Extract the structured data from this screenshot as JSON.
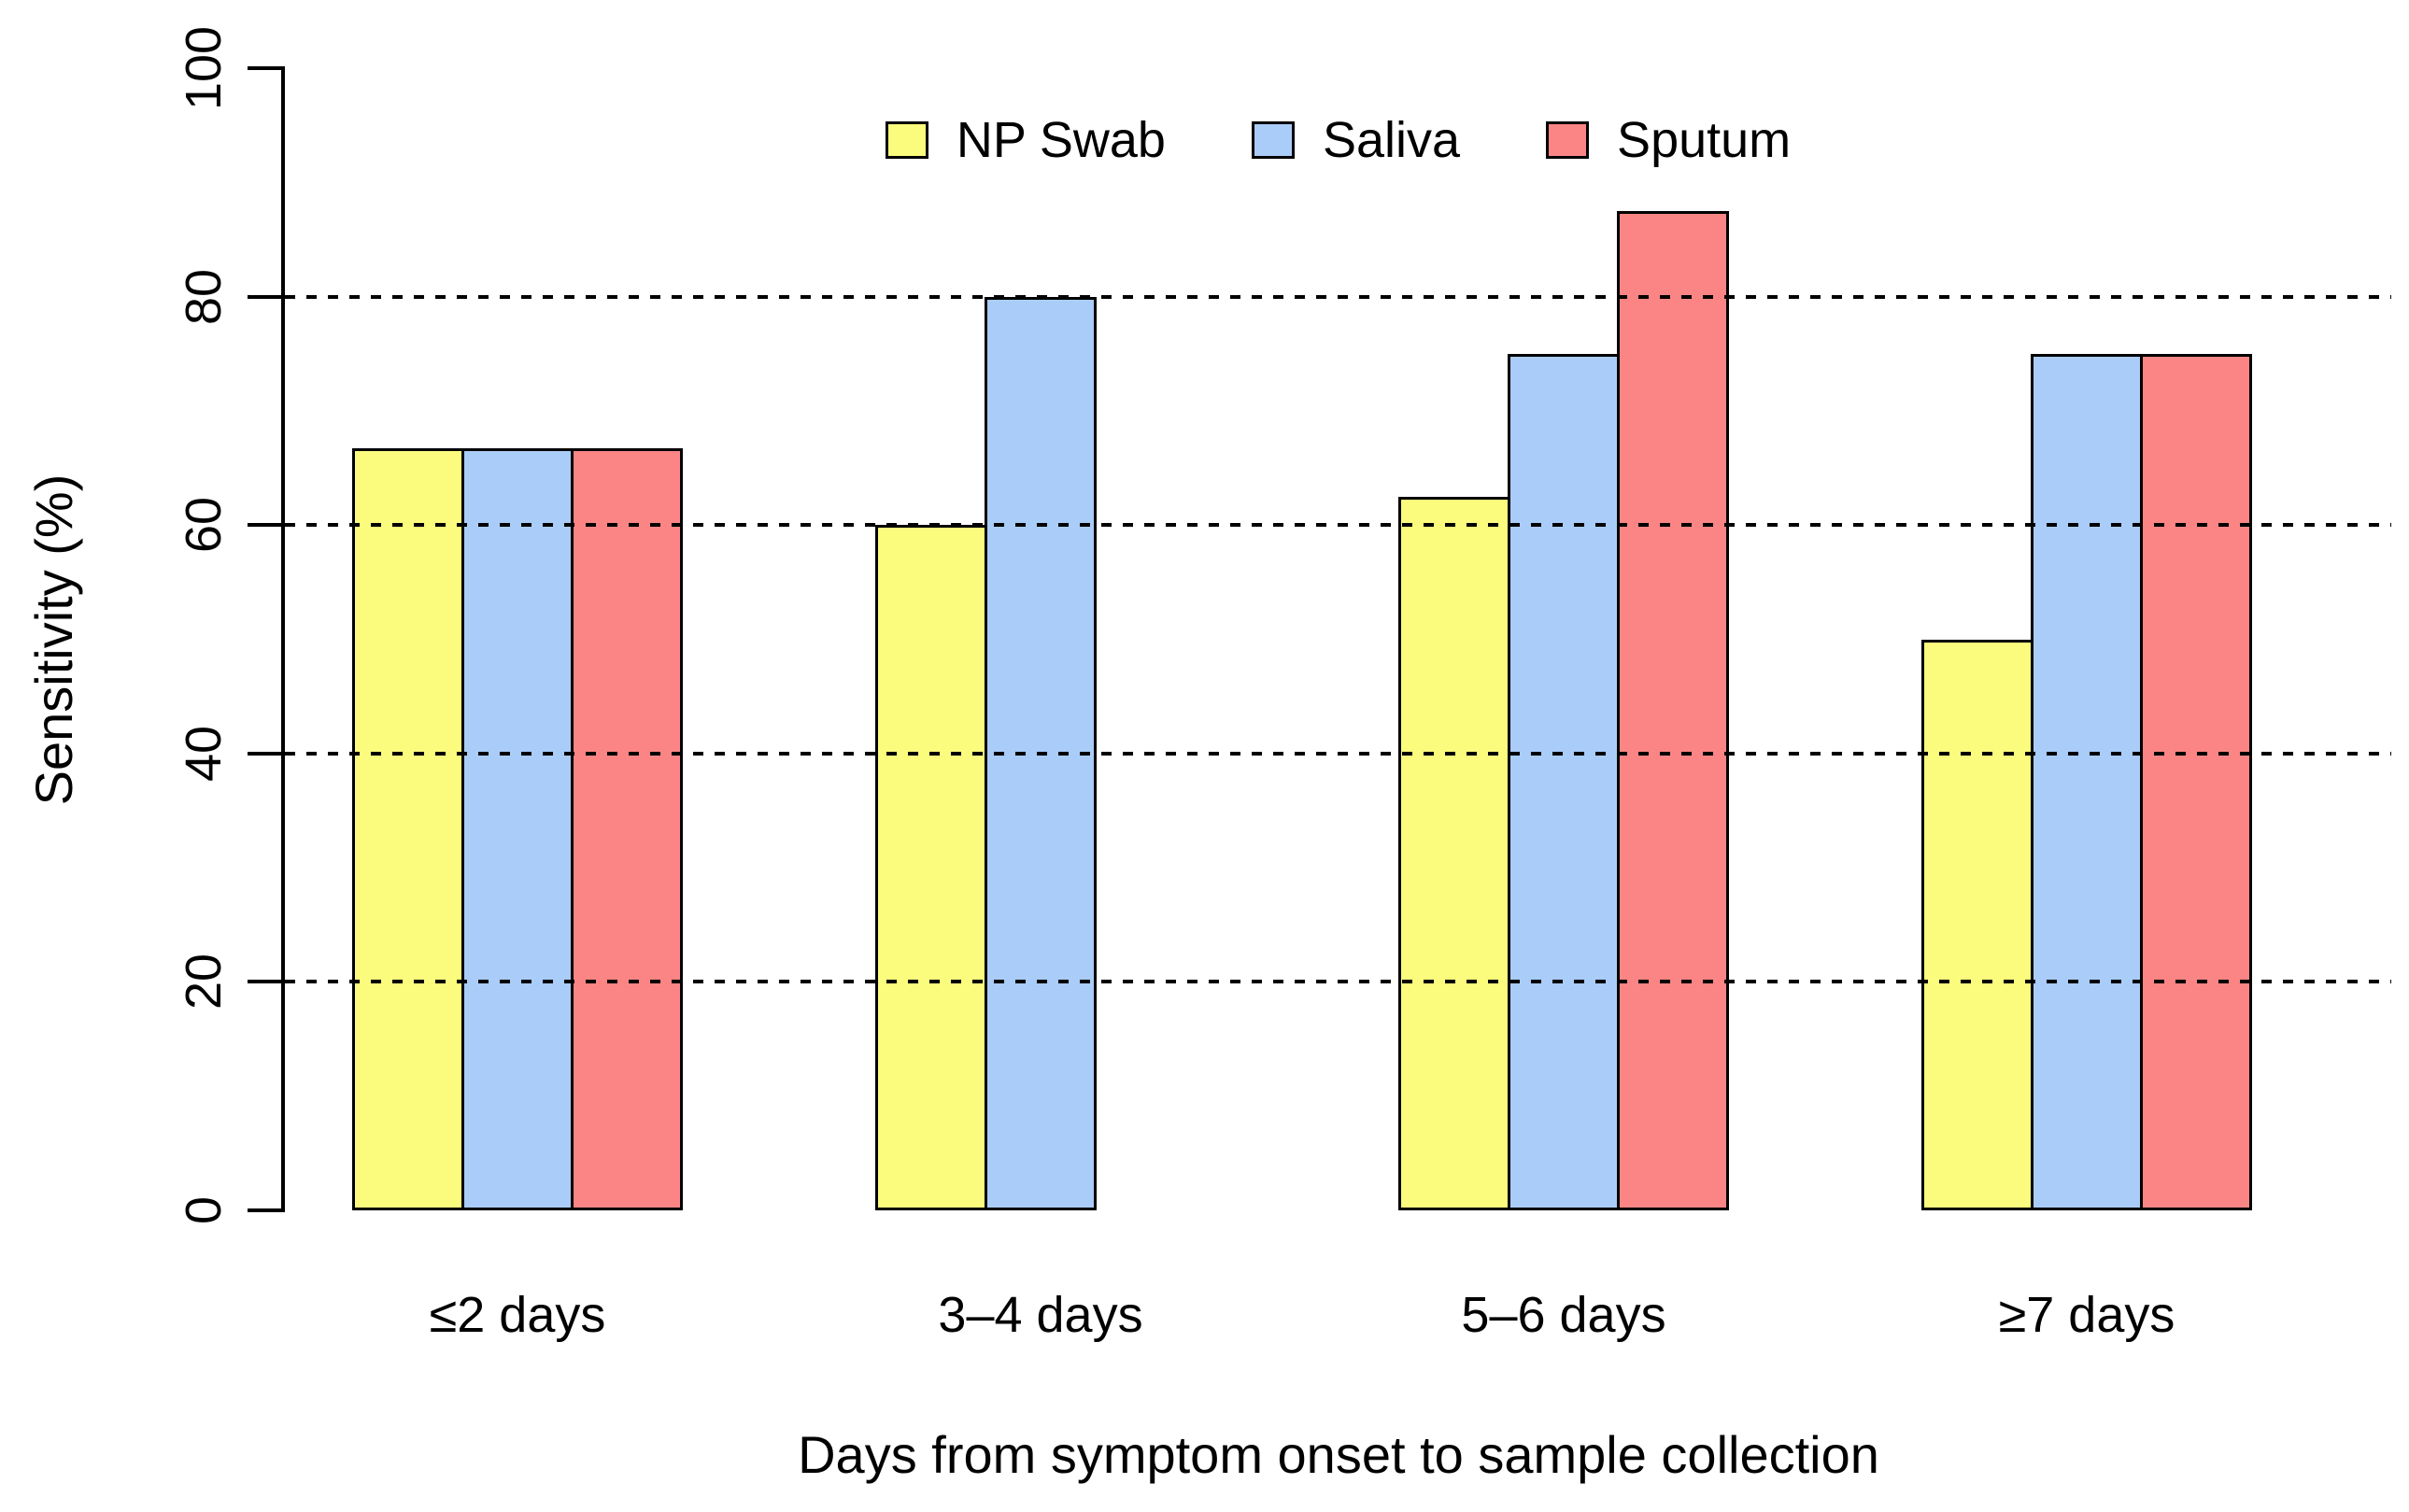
{
  "chart_data": {
    "type": "bar",
    "title": "",
    "categories": [
      "≤2 days",
      "3–4 days",
      "5–6 days",
      "≥7 days"
    ],
    "series": [
      {
        "name": "NP Swab",
        "color": "#FBFB7E",
        "values": [
          66.7,
          60,
          62.5,
          50
        ]
      },
      {
        "name": "Saliva",
        "color": "#AACCF8",
        "values": [
          66.7,
          80,
          75,
          75
        ]
      },
      {
        "name": "Sputum",
        "color": "#FB8585",
        "values": [
          66.7,
          null,
          87.5,
          75
        ]
      }
    ],
    "xlabel": "Days from symptom onset to sample collection",
    "ylabel": "Sensitivity (%)",
    "ylim": [
      0,
      100
    ],
    "yticks": [
      0,
      20,
      40,
      60,
      80,
      100
    ],
    "gridlines": [
      20,
      40,
      60,
      80
    ],
    "grid_style": "dotted",
    "legend_position": "top-center-horizontal",
    "bar_border_color": "#000000",
    "axis_color": "#000000",
    "background": "#FFFFFF"
  }
}
